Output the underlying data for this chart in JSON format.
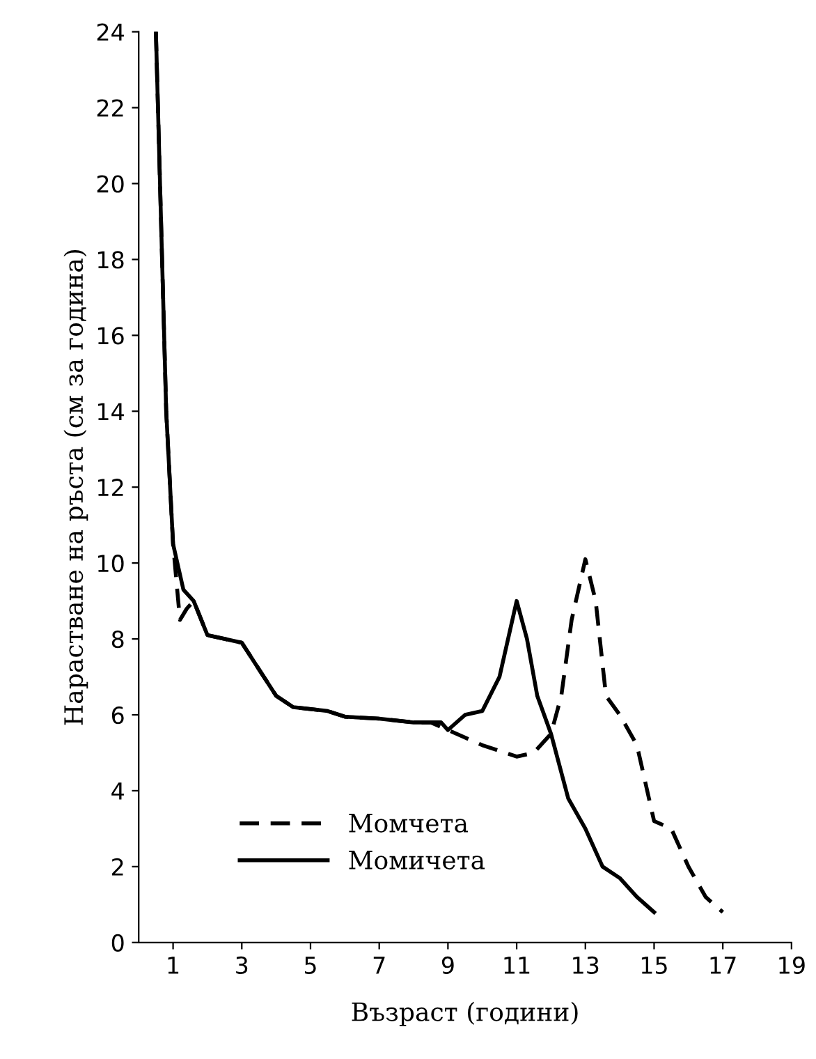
{
  "chart_data": {
    "type": "line",
    "xlabel": "Възраст (години)",
    "ylabel": "Нарастване на ръста (см за година)",
    "xlim": [
      0,
      19
    ],
    "ylim": [
      0,
      24
    ],
    "xticks": [
      1,
      3,
      5,
      7,
      9,
      11,
      13,
      15,
      17,
      19
    ],
    "yticks": [
      0,
      2,
      4,
      6,
      8,
      10,
      12,
      14,
      16,
      18,
      20,
      22,
      24
    ],
    "grid": false,
    "legend": "bottom left",
    "series": [
      {
        "name": "Момчета",
        "color": "#000000",
        "line_style": "dashed",
        "x": [
          0.5,
          0.8,
          1,
          1.2,
          1.4,
          1.6,
          2,
          2.5,
          3,
          3.5,
          4,
          4.5,
          5,
          5.5,
          6,
          7,
          8,
          8.5,
          9,
          10,
          11,
          11.5,
          12,
          12.3,
          12.6,
          13,
          13.3,
          13.6,
          14,
          14.5,
          15,
          15.5,
          16,
          16.5,
          17
        ],
        "values": [
          24,
          14,
          10.5,
          8.5,
          8.8,
          9,
          8.1,
          8,
          7.9,
          7.2,
          6.5,
          6.2,
          6.15,
          6.1,
          5.95,
          5.9,
          5.8,
          5.8,
          5.6,
          5.2,
          4.9,
          5,
          5.5,
          6.5,
          8.5,
          10.1,
          9,
          6.5,
          6,
          5.2,
          3.2,
          3,
          2,
          1.2,
          0.8
        ]
      },
      {
        "name": "Момичета",
        "color": "#000000",
        "line_style": "solid",
        "x": [
          0.5,
          0.8,
          1,
          1.3,
          1.6,
          2,
          2.5,
          3,
          3.5,
          4,
          4.5,
          5,
          5.5,
          6,
          7,
          8,
          8.8,
          9,
          9.5,
          10,
          10.5,
          11,
          11.3,
          11.6,
          12,
          12.5,
          13,
          13.5,
          14,
          14.5,
          15
        ],
        "values": [
          24,
          14,
          10.5,
          9.3,
          9,
          8.1,
          8,
          7.9,
          7.2,
          6.5,
          6.2,
          6.15,
          6.1,
          5.95,
          5.9,
          5.8,
          5.8,
          5.6,
          6,
          6.1,
          7,
          9,
          8,
          6.5,
          5.5,
          3.8,
          3,
          2,
          1.7,
          1.2,
          0.8
        ]
      }
    ]
  }
}
